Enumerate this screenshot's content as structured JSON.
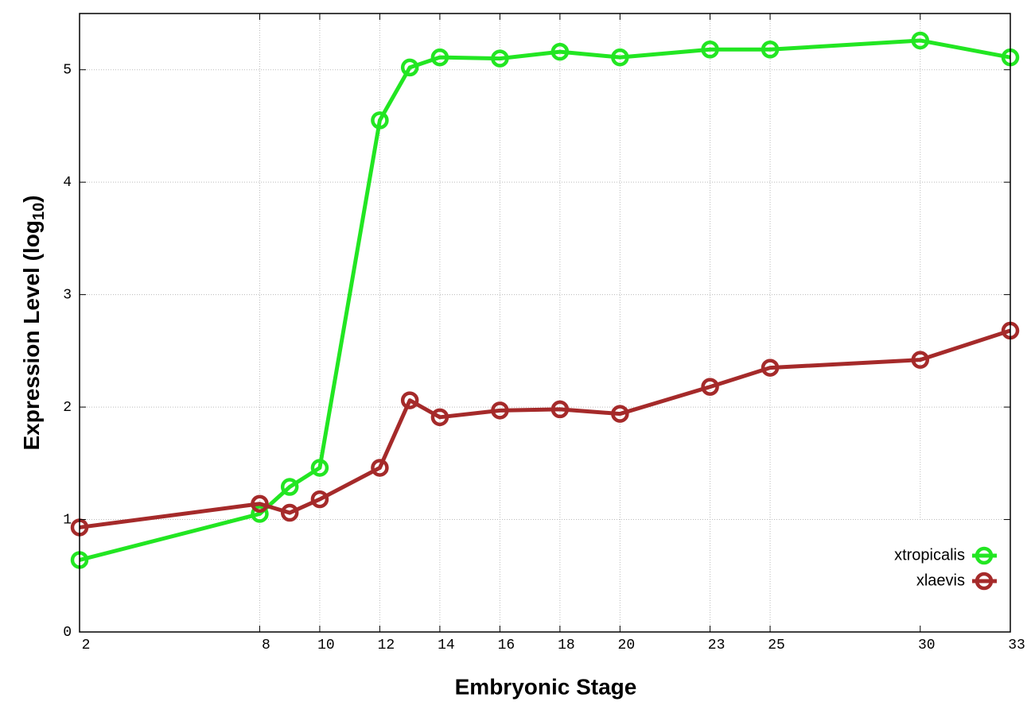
{
  "chart_data": {
    "type": "line",
    "x_label": "Embryonic Stage",
    "y_label_parts": [
      "Expression Level (log",
      "10",
      ")"
    ],
    "x": [
      2,
      8,
      9,
      10,
      12,
      13,
      14,
      16,
      18,
      20,
      23,
      25,
      30,
      33
    ],
    "series": [
      {
        "name": "xtropicalis",
        "color": "#22e622",
        "values": [
          0.64,
          1.05,
          1.29,
          1.46,
          4.55,
          5.02,
          5.11,
          5.1,
          5.16,
          5.11,
          5.18,
          5.18,
          5.26,
          5.11
        ]
      },
      {
        "name": "xlaevis",
        "color": "#a52a2a",
        "values": [
          0.93,
          1.14,
          1.06,
          1.18,
          1.46,
          2.06,
          1.91,
          1.97,
          1.98,
          1.94,
          2.18,
          2.35,
          2.42,
          2.68
        ]
      }
    ],
    "xlim": [
      2,
      33
    ],
    "xticks": [
      2,
      8,
      10,
      12,
      14,
      16,
      18,
      20,
      23,
      25,
      30,
      33
    ],
    "ylim": [
      0,
      5.5
    ],
    "yticks": [
      0,
      1,
      2,
      3,
      4,
      5
    ],
    "grid": true,
    "legend": "bottom-right"
  }
}
